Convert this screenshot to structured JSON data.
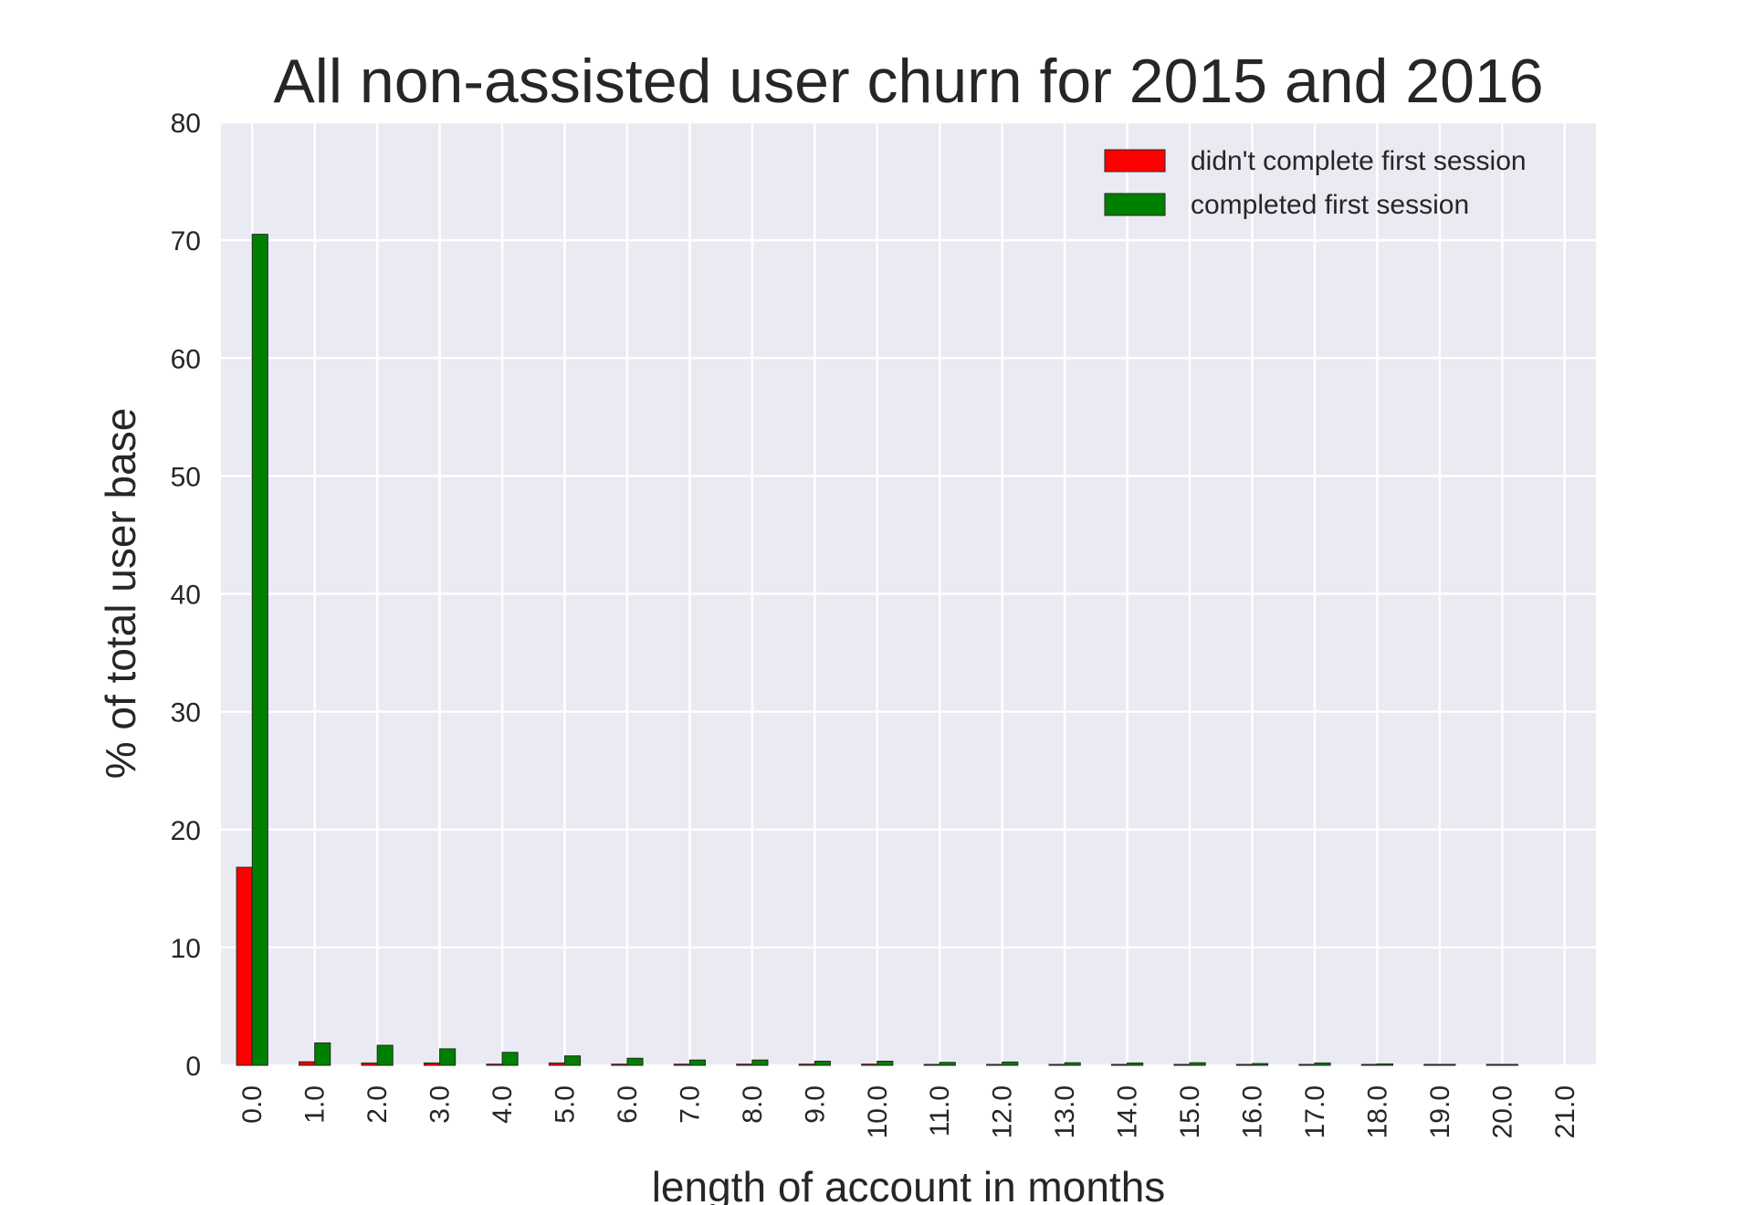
{
  "chart_data": {
    "type": "bar",
    "title": "All non-assisted user churn for 2015 and 2016",
    "xlabel": "length of account in months",
    "ylabel": "% of total user base",
    "ylim": [
      0,
      80
    ],
    "yticks": [
      "0",
      "10",
      "20",
      "30",
      "40",
      "50",
      "60",
      "70",
      "80"
    ],
    "categories": [
      "0.0",
      "1.0",
      "2.0",
      "3.0",
      "4.0",
      "5.0",
      "6.0",
      "7.0",
      "8.0",
      "9.0",
      "10.0",
      "11.0",
      "12.0",
      "13.0",
      "14.0",
      "15.0",
      "16.0",
      "17.0",
      "18.0",
      "19.0",
      "20.0",
      "21.0"
    ],
    "series": [
      {
        "name": "didn't complete first session",
        "color": "#ff0000",
        "values": [
          16.8,
          0.3,
          0.2,
          0.2,
          0.1,
          0.2,
          0.1,
          0.1,
          0.1,
          0.1,
          0.1,
          0.05,
          0.05,
          0.05,
          0.05,
          0.05,
          0.03,
          0.03,
          0.03,
          0.02,
          0.02,
          0.0
        ]
      },
      {
        "name": "completed first session",
        "color": "#008000",
        "values": [
          70.5,
          1.9,
          1.7,
          1.4,
          1.1,
          0.8,
          0.6,
          0.45,
          0.45,
          0.35,
          0.35,
          0.25,
          0.28,
          0.22,
          0.2,
          0.22,
          0.15,
          0.2,
          0.12,
          0.08,
          0.06,
          0.0
        ]
      }
    ],
    "grid": true,
    "legend_position": "top-right",
    "colors": {
      "plot_background": "#eaeaf2",
      "grid": "#ffffff",
      "bar_edge": "#262626"
    }
  }
}
